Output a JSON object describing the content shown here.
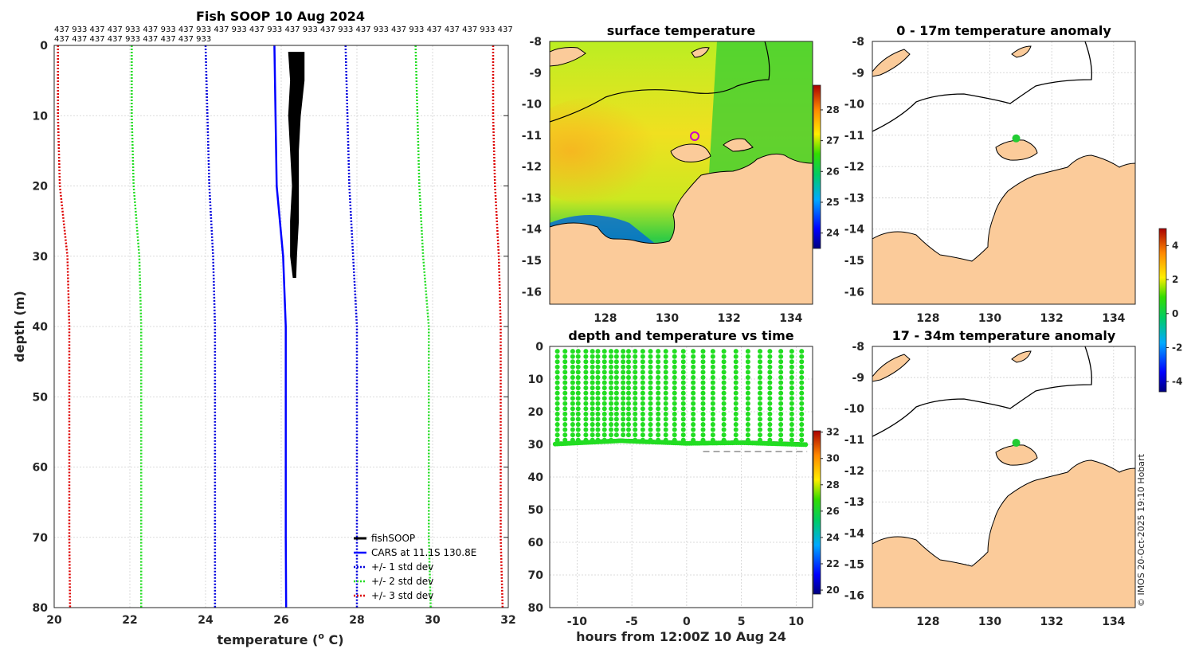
{
  "colors": {
    "land": "#FBCB9A",
    "coast": "#000000",
    "fishsoop": "#000000",
    "cars": "#0000FF",
    "std1": "#0000DD",
    "std2": "#22DD22",
    "std3": "#DD0000",
    "depth_dots": "#22DD22",
    "anomaly_dot": "#22CC33"
  },
  "copyright": "© IMOS 20-Oct-2025 19:10 Hobart",
  "chart_data": [
    {
      "type": "line",
      "id": "profile",
      "title": "Fish SOOP 10 Aug 2024",
      "ids_line1": "437 933 437 437 933 437 933 437 933 437 933 437 933 437 933 437 933 437 933 437 933 437 437 437 933 437",
      "ids_line2": "437 437 437 437 933 437 437 437 933",
      "xlabel": "temperature (",
      "xlabel_sup": "o",
      "xlabel_end": " C)",
      "ylabel": "depth (m)",
      "xlim": [
        20,
        32
      ],
      "ylim": [
        0,
        80
      ],
      "xticks": [
        20,
        22,
        24,
        26,
        28,
        30,
        32
      ],
      "yticks": [
        0,
        10,
        20,
        30,
        40,
        50,
        60,
        70,
        80
      ],
      "y_reversed": true,
      "legend": [
        "fishSOOP",
        "CARS at 11.1S 130.8E",
        "+/- 1 std dev",
        "+/- 2 std dev",
        "+/- 3 std dev"
      ],
      "legend_position": "bottom-right",
      "series": [
        {
          "name": "CARS at 11.1S 130.8E",
          "style": "solid",
          "points": [
            [
              25.82,
              0
            ],
            [
              25.85,
              10
            ],
            [
              25.88,
              20
            ],
            [
              26.05,
              30
            ],
            [
              26.12,
              40
            ],
            [
              26.12,
              50
            ],
            [
              26.12,
              60
            ],
            [
              26.12,
              70
            ],
            [
              26.13,
              80
            ]
          ]
        },
        {
          "name": "+/- 1 std dev low",
          "style": "dotted",
          "points": [
            [
              24.0,
              0
            ],
            [
              24.05,
              10
            ],
            [
              24.1,
              20
            ],
            [
              24.2,
              30
            ],
            [
              24.25,
              40
            ],
            [
              24.25,
              50
            ],
            [
              24.25,
              60
            ],
            [
              24.25,
              70
            ],
            [
              24.25,
              80
            ]
          ]
        },
        {
          "name": "+/- 1 std dev high",
          "style": "dotted",
          "points": [
            [
              27.7,
              0
            ],
            [
              27.75,
              10
            ],
            [
              27.8,
              20
            ],
            [
              27.9,
              30
            ],
            [
              28.0,
              40
            ],
            [
              28.0,
              50
            ],
            [
              28.0,
              60
            ],
            [
              28.0,
              70
            ],
            [
              28.0,
              80
            ]
          ]
        },
        {
          "name": "+/- 2 std dev low",
          "style": "dotted",
          "points": [
            [
              22.05,
              0
            ],
            [
              22.05,
              10
            ],
            [
              22.1,
              20
            ],
            [
              22.25,
              30
            ],
            [
              22.3,
              40
            ],
            [
              22.3,
              50
            ],
            [
              22.3,
              60
            ],
            [
              22.3,
              70
            ],
            [
              22.3,
              80
            ]
          ]
        },
        {
          "name": "+/- 2 std dev high",
          "style": "dotted",
          "points": [
            [
              29.55,
              0
            ],
            [
              29.6,
              10
            ],
            [
              29.65,
              20
            ],
            [
              29.75,
              30
            ],
            [
              29.9,
              40
            ],
            [
              29.9,
              50
            ],
            [
              29.9,
              60
            ],
            [
              29.9,
              70
            ],
            [
              29.95,
              80
            ]
          ]
        },
        {
          "name": "+/- 3 std dev low",
          "style": "dotted",
          "points": [
            [
              20.1,
              0
            ],
            [
              20.1,
              10
            ],
            [
              20.15,
              20
            ],
            [
              20.35,
              30
            ],
            [
              20.4,
              40
            ],
            [
              20.4,
              50
            ],
            [
              20.4,
              60
            ],
            [
              20.4,
              70
            ],
            [
              20.42,
              80
            ]
          ]
        },
        {
          "name": "+/- 3 std dev high",
          "style": "dotted",
          "points": [
            [
              31.6,
              0
            ],
            [
              31.6,
              10
            ],
            [
              31.65,
              20
            ],
            [
              31.75,
              30
            ],
            [
              31.8,
              40
            ],
            [
              31.8,
              50
            ],
            [
              31.8,
              60
            ],
            [
              31.8,
              70
            ],
            [
              31.85,
              80
            ]
          ]
        }
      ],
      "fishsoop_envelope": {
        "left": [
          [
            26.2,
            1
          ],
          [
            26.25,
            5
          ],
          [
            26.2,
            10
          ],
          [
            26.25,
            15
          ],
          [
            26.3,
            20
          ],
          [
            26.25,
            25
          ],
          [
            26.25,
            30
          ],
          [
            26.32,
            33
          ]
        ],
        "right": [
          [
            26.6,
            1
          ],
          [
            26.6,
            5
          ],
          [
            26.5,
            10
          ],
          [
            26.45,
            15
          ],
          [
            26.45,
            20
          ],
          [
            26.45,
            25
          ],
          [
            26.4,
            30
          ],
          [
            26.38,
            33
          ]
        ]
      }
    },
    {
      "type": "heatmap",
      "id": "sst",
      "title": "surface temperature",
      "xlim": [
        126.2,
        134.7
      ],
      "ylim": [
        -16.4,
        -8
      ],
      "xticks": [
        128,
        130,
        132,
        134
      ],
      "yticks": [
        -8,
        -9,
        -10,
        -11,
        -12,
        -13,
        -14,
        -15,
        -16
      ],
      "colorbar": {
        "range": [
          23.5,
          28.8
        ],
        "ticks": [
          24,
          25,
          26,
          27,
          28
        ]
      }
    },
    {
      "type": "scatter",
      "id": "depth_time",
      "title": "depth and temperature vs time",
      "xlabel": "hours from 12:00Z 10 Aug 24",
      "xlim": [
        -12.5,
        11.5
      ],
      "ylim": [
        0,
        80
      ],
      "y_reversed": true,
      "xticks": [
        -10,
        -5,
        0,
        5,
        10
      ],
      "yticks": [
        0,
        10,
        20,
        30,
        40,
        50,
        60,
        70,
        80
      ],
      "colorbar": {
        "range": [
          19.7,
          32.1
        ],
        "ticks": [
          20,
          22,
          24,
          26,
          28,
          30,
          32
        ]
      },
      "dive_times": [
        -11.8,
        -11.1,
        -10.4,
        -9.9,
        -9.2,
        -8.6,
        -8.1,
        -7.5,
        -6.9,
        -6.4,
        -5.8,
        -5.3,
        -4.7,
        -4.0,
        -3.3,
        -2.6,
        -1.9,
        -1.1,
        -0.3,
        0.6,
        1.5,
        2.4,
        3.4,
        4.5,
        5.6,
        6.7,
        7.6,
        8.6,
        9.6,
        10.5
      ],
      "top_depth": 1.5,
      "bottom_depth_line": [
        [
          -12,
          29.6
        ],
        [
          -6,
          28.6
        ],
        [
          0,
          29.4
        ],
        [
          5,
          29.2
        ],
        [
          11,
          29.8
        ]
      ],
      "bathymetry_dashes": [
        [
          1.5,
          32.2
        ],
        [
          11.0,
          32.2
        ]
      ]
    },
    {
      "type": "heatmap",
      "id": "anom_shallow",
      "title": "0 - 17m temperature anomaly",
      "xlim": [
        126.2,
        134.7
      ],
      "ylim": [
        -16.4,
        -8
      ],
      "xticks": [
        128,
        130,
        132,
        134
      ],
      "yticks": [
        -8,
        -9,
        -10,
        -11,
        -12,
        -13,
        -14,
        -15,
        -16
      ],
      "points": [
        {
          "lon": 130.85,
          "lat": -11.1
        }
      ]
    },
    {
      "type": "heatmap",
      "id": "anom_deep",
      "title": "17 - 34m temperature anomaly",
      "xlim": [
        126.2,
        134.7
      ],
      "ylim": [
        -16.4,
        -8
      ],
      "xticks": [
        128,
        130,
        132,
        134
      ],
      "yticks": [
        -8,
        -9,
        -10,
        -11,
        -12,
        -13,
        -14,
        -15,
        -16
      ],
      "points": [
        {
          "lon": 130.85,
          "lat": -11.1
        }
      ],
      "colorbar": {
        "range": [
          -4.6,
          5.0
        ],
        "ticks": [
          -4,
          -2,
          0,
          2,
          4
        ]
      }
    }
  ]
}
